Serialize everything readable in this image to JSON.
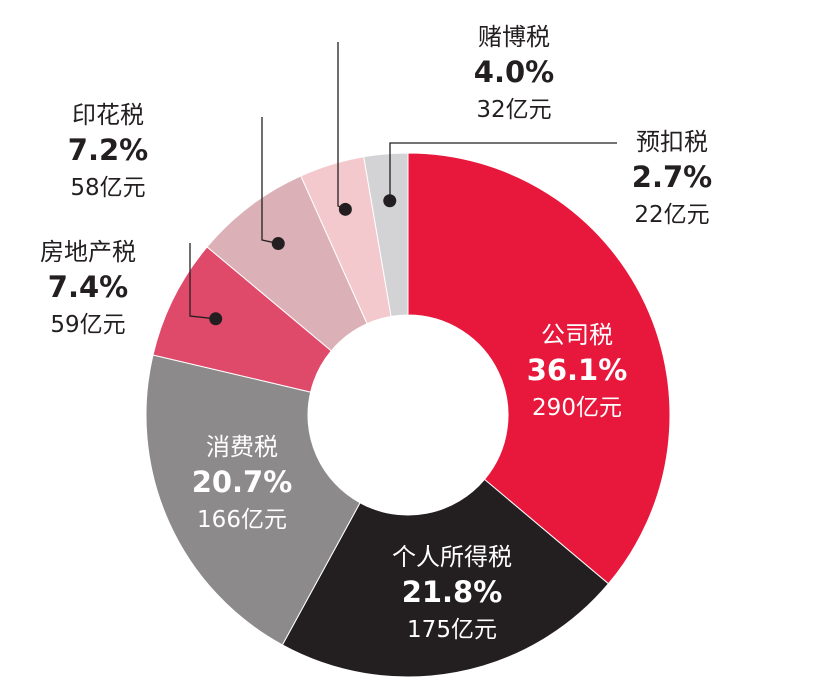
{
  "chart_data": {
    "type": "pie",
    "donut": true,
    "legend": "none",
    "slices": [
      {
        "name": "公司税",
        "percent": 36.1,
        "percent_label": "36.1%",
        "amount_label": "290亿元",
        "color": "#e8183d",
        "label_color": "#ffffff"
      },
      {
        "name": "个人所得税",
        "percent": 21.8,
        "percent_label": "21.8%",
        "amount_label": "175亿元",
        "color": "#231f20",
        "label_color": "#ffffff"
      },
      {
        "name": "消费税",
        "percent": 20.7,
        "percent_label": "20.7%",
        "amount_label": "166亿元",
        "color": "#8c8a8b",
        "label_color": "#ffffff"
      },
      {
        "name": "房地产税",
        "percent": 7.4,
        "percent_label": "7.4%",
        "amount_label": "59亿元",
        "color": "#e04a6a",
        "label_color": "#231f20"
      },
      {
        "name": "印花税",
        "percent": 7.2,
        "percent_label": "7.2%",
        "amount_label": "58亿元",
        "color": "#dcb0b7",
        "label_color": "#231f20"
      },
      {
        "name": "赌博税",
        "percent": 4.0,
        "percent_label": "4.0%",
        "amount_label": "32亿元",
        "color": "#f4c9ce",
        "label_color": "#231f20"
      },
      {
        "name": "预扣税",
        "percent": 2.7,
        "percent_label": "2.7%",
        "amount_label": "22亿元",
        "color": "#d3d3d5",
        "label_color": "#231f20"
      }
    ]
  }
}
